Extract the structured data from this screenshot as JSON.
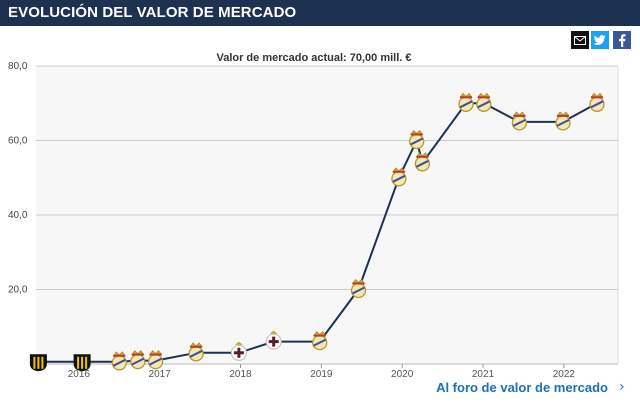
{
  "header": {
    "title": "EVOLUCIÓN DEL VALOR DE MERCADO"
  },
  "share": {
    "email_icon": "email-icon",
    "twitter_icon": "twitter-icon",
    "facebook_icon": "facebook-icon"
  },
  "footer": {
    "link_label": "Al foro de valor de mercado",
    "chevron": "›"
  },
  "colors": {
    "header_bg": "#1d3150",
    "line": "#1d3150",
    "link": "#1b70b8",
    "grid": "#cccccc"
  },
  "chart_data": {
    "type": "line",
    "title": "Valor de mercado actual: 70,00 mill. €",
    "xlabel": "",
    "ylabel": "",
    "ylim": [
      0,
      80
    ],
    "xlim": [
      2015.47,
      2022.67
    ],
    "yticks": [
      20,
      40,
      60,
      80
    ],
    "ytick_labels": [
      "20,0",
      "40,0",
      "60,0",
      "80,0"
    ],
    "xticks": [
      2016,
      2017,
      2018,
      2019,
      2020,
      2021,
      2022
    ],
    "xtick_labels": [
      "2016",
      "2017",
      "2018",
      "2019",
      "2020",
      "2021",
      "2022"
    ],
    "grid": true,
    "legend": "none",
    "series": [
      {
        "points": [
          {
            "x": 2015.5,
            "y": 0.6,
            "club": "peñarol"
          },
          {
            "x": 2016.04,
            "y": 0.6,
            "club": "peñarol"
          },
          {
            "x": 2016.5,
            "y": 0.6,
            "club": "real-madrid"
          },
          {
            "x": 2016.73,
            "y": 0.9,
            "club": "real-madrid"
          },
          {
            "x": 2016.95,
            "y": 0.9,
            "club": "real-madrid"
          },
          {
            "x": 2017.45,
            "y": 3,
            "club": "real-madrid"
          },
          {
            "x": 2017.98,
            "y": 3,
            "club": "deportivo"
          },
          {
            "x": 2018.41,
            "y": 6,
            "club": "deportivo"
          },
          {
            "x": 2018.98,
            "y": 6,
            "club": "real-madrid"
          },
          {
            "x": 2019.46,
            "y": 20,
            "club": "real-madrid"
          },
          {
            "x": 2019.96,
            "y": 50,
            "club": "real-madrid"
          },
          {
            "x": 2020.18,
            "y": 60,
            "club": "real-madrid"
          },
          {
            "x": 2020.25,
            "y": 54,
            "club": "real-madrid"
          },
          {
            "x": 2020.79,
            "y": 70,
            "club": "real-madrid"
          },
          {
            "x": 2021.01,
            "y": 70,
            "club": "real-madrid"
          },
          {
            "x": 2021.45,
            "y": 65,
            "club": "real-madrid"
          },
          {
            "x": 2021.99,
            "y": 65,
            "club": "real-madrid"
          },
          {
            "x": 2022.41,
            "y": 70,
            "club": "real-madrid"
          }
        ]
      }
    ]
  }
}
